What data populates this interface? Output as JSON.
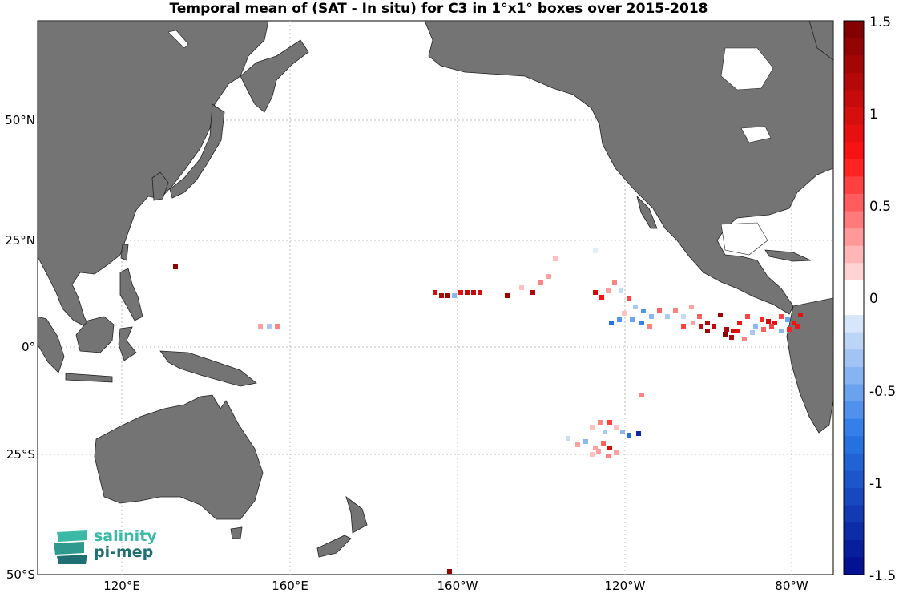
{
  "title": "Temporal mean of (SAT - In situ) for C3 in 1°x1° boxes over 2015-2018",
  "lat_labels": [
    "50°N",
    "25°N",
    "0°",
    "25°S",
    "50°S"
  ],
  "lon_labels": [
    "120°E",
    "160°E",
    "160°W",
    "120°W",
    "80°W"
  ],
  "colorbar": {
    "min": -1.5,
    "max": 1.5,
    "tick_labels": [
      "1.5",
      "1",
      "0.5",
      "0",
      "-0.5",
      "-1",
      "-1.5"
    ],
    "colormap": "blue-white-red",
    "colors": {
      "neg_max": "#000a8c",
      "neutral": "#ffffff",
      "pos_max": "#7a0000"
    }
  },
  "logo": {
    "line1": "salinity",
    "line2": "pi-mep"
  },
  "colors": {
    "land": "#747474",
    "ocean": "#ffffff",
    "grid": "#bbbbbb"
  }
}
